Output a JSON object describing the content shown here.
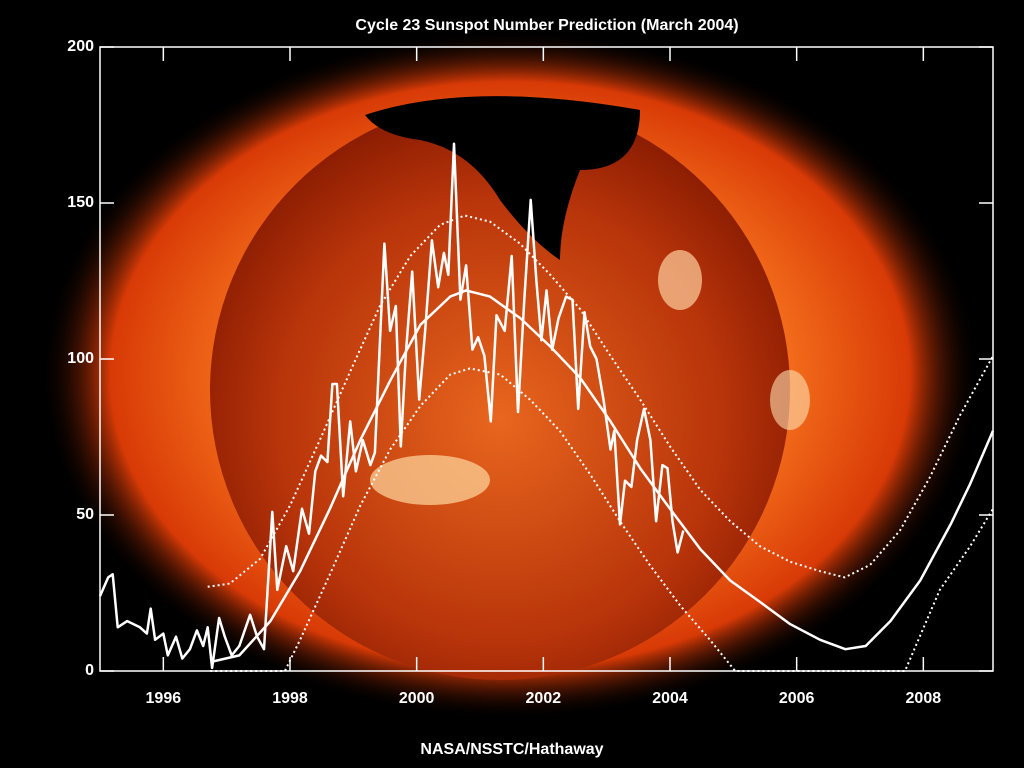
{
  "chart_data": {
    "type": "line",
    "title": "Cycle 23 Sunspot Number Prediction (March 2004)",
    "credit": "NASA/NSSTC/Hathaway",
    "xlim": [
      1995,
      2009.1
    ],
    "ylim": [
      0,
      200
    ],
    "xticks": [
      1996,
      1998,
      2000,
      2002,
      2004,
      2006,
      2008
    ],
    "yticks": [
      0,
      50,
      100,
      150,
      200
    ],
    "series": [
      {
        "color": "#ffffff",
        "line_style": "solid",
        "x": [
          1995.0,
          1995.13,
          1995.2,
          1995.28,
          1995.43,
          1995.63,
          1995.74,
          1995.8,
          1995.87,
          1996.0,
          1996.07,
          1996.2,
          1996.3,
          1996.42,
          1996.53,
          1996.63,
          1996.7,
          1996.77,
          1996.88,
          1996.97,
          1997.08,
          1997.2,
          1997.37,
          1997.48,
          1997.59,
          1997.72,
          1997.8,
          1997.94,
          1998.05,
          1998.19,
          1998.3,
          1998.4,
          1998.49,
          1998.59,
          1998.67,
          1998.74,
          1998.84,
          1998.95,
          1999.04,
          1999.15,
          1999.27,
          1999.34,
          1999.49,
          1999.58,
          1999.67,
          1999.75,
          1999.83,
          1999.93,
          2000.04,
          2000.13,
          2000.24,
          2000.34,
          2000.43,
          2000.5,
          2000.59,
          2000.69,
          2000.78,
          2000.88,
          2000.97,
          2001.07,
          2001.17,
          2001.26,
          2001.39,
          2001.5,
          2001.6,
          2001.7,
          2001.8,
          2001.89,
          2001.97,
          2002.05,
          2002.14,
          2002.24,
          2002.36,
          2002.46,
          2002.55,
          2002.65,
          2002.74,
          2002.84,
          2002.95,
          2003.06,
          2003.12,
          2003.21,
          2003.29,
          2003.39,
          2003.48,
          2003.59,
          2003.69,
          2003.78,
          2003.88,
          2003.96,
          2004.04,
          2004.12,
          2004.21
        ],
        "values": [
          24,
          30,
          31,
          14,
          16,
          14,
          12,
          20,
          10,
          12,
          5,
          11,
          4,
          7,
          13,
          8,
          14,
          1,
          17,
          11,
          5,
          8,
          18,
          11,
          7,
          51,
          26,
          40,
          32,
          52,
          44,
          64,
          69,
          67,
          92,
          92,
          56,
          80,
          64,
          74,
          66,
          70,
          137,
          109,
          117,
          72,
          102,
          128,
          87,
          108,
          138,
          123,
          134,
          127,
          169,
          119,
          130,
          103,
          107,
          101,
          80,
          114,
          109,
          133,
          83,
          119,
          151,
          125,
          106,
          122,
          103,
          113,
          120,
          119,
          84,
          115,
          104,
          100,
          87,
          71,
          77,
          47,
          61,
          59,
          74,
          84,
          74,
          48,
          66,
          65,
          48,
          38,
          45
        ]
      },
      {
        "color": "#ffffff",
        "line_style": "solid",
        "x": [
          1996.77,
          1997.2,
          1997.69,
          1998.16,
          1998.63,
          1999.11,
          1999.58,
          2000.06,
          2000.53,
          2000.78,
          2001.16,
          2001.64,
          2002.11,
          2002.58,
          2003.06,
          2003.53,
          2004.0,
          2004.48,
          2004.95,
          2005.43,
          2005.9,
          2006.37,
          2006.77,
          2007.09,
          2007.48,
          2007.95,
          2008.43,
          2008.74,
          2009.1
        ],
        "values": [
          3,
          5,
          16,
          32,
          52,
          74,
          93,
          111,
          120,
          122,
          120,
          113,
          104,
          94,
          80,
          65,
          52,
          39,
          29,
          22,
          15,
          10,
          7,
          8,
          16,
          29,
          47,
          60,
          77
        ]
      },
      {
        "color": "#ffffff",
        "line_style": "dotted",
        "x": [
          1996.7,
          1997.05,
          1997.53,
          1998.0,
          1998.47,
          1998.95,
          1999.42,
          1999.9,
          2000.37,
          2000.76,
          2001.16,
          2001.63,
          2002.11,
          2002.58,
          2003.06,
          2003.53,
          2004.0,
          2004.48,
          2004.95,
          2005.42,
          2005.9,
          2006.37,
          2006.76,
          2007.16,
          2007.63,
          2008.1,
          2008.58,
          2009.1
        ],
        "values": [
          27,
          28,
          36,
          53,
          74,
          96,
          117,
          133,
          143,
          146,
          144,
          137,
          127,
          116,
          101,
          87,
          72,
          58,
          48,
          40,
          35,
          32,
          30,
          34,
          45,
          62,
          82,
          101
        ]
      },
      {
        "color": "#ffffff",
        "line_style": "dotted",
        "x": [
          1996.74,
          1997.92,
          1998.16,
          1998.63,
          1999.11,
          1999.58,
          2000.06,
          2000.53,
          2000.84,
          2001.32,
          2001.79,
          2002.26,
          2002.74,
          2003.21,
          2003.68,
          2004.16,
          2004.63,
          2005.03,
          2007.71,
          2008.26,
          2008.74,
          2009.1
        ],
        "values": [
          0,
          0,
          10,
          31,
          53,
          71,
          85,
          95,
          97,
          95,
          87,
          77,
          63,
          48,
          34,
          21,
          10,
          0,
          0,
          26,
          40,
          52
        ]
      }
    ]
  }
}
